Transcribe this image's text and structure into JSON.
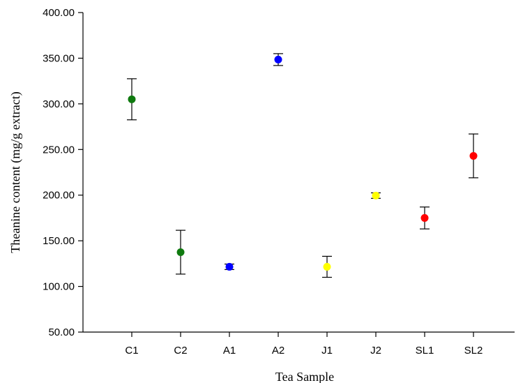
{
  "chart_data": {
    "type": "scatter",
    "title": "",
    "xlabel": "Tea Sample",
    "ylabel": "Theanine content (mg/g extract)",
    "ylim": [
      50,
      400
    ],
    "yticks": [
      "50.00",
      "100.00",
      "150.00",
      "200.00",
      "250.00",
      "300.00",
      "350.00",
      "400.00"
    ],
    "categories": [
      "C1",
      "C2",
      "A1",
      "A2",
      "J1",
      "J2",
      "SL1",
      "SL2"
    ],
    "values": [
      305,
      137.5,
      121.5,
      348.5,
      121.5,
      199.5,
      175,
      243
    ],
    "errors": [
      22.5,
      24,
      3,
      6.5,
      11.5,
      3,
      12,
      24
    ],
    "colors": [
      "#0f7a0f",
      "#0f7a0f",
      "#0000ff",
      "#0000ff",
      "#ffff00",
      "#ffff00",
      "#ff0000",
      "#ff0000"
    ],
    "grid": false,
    "legend": "none"
  }
}
